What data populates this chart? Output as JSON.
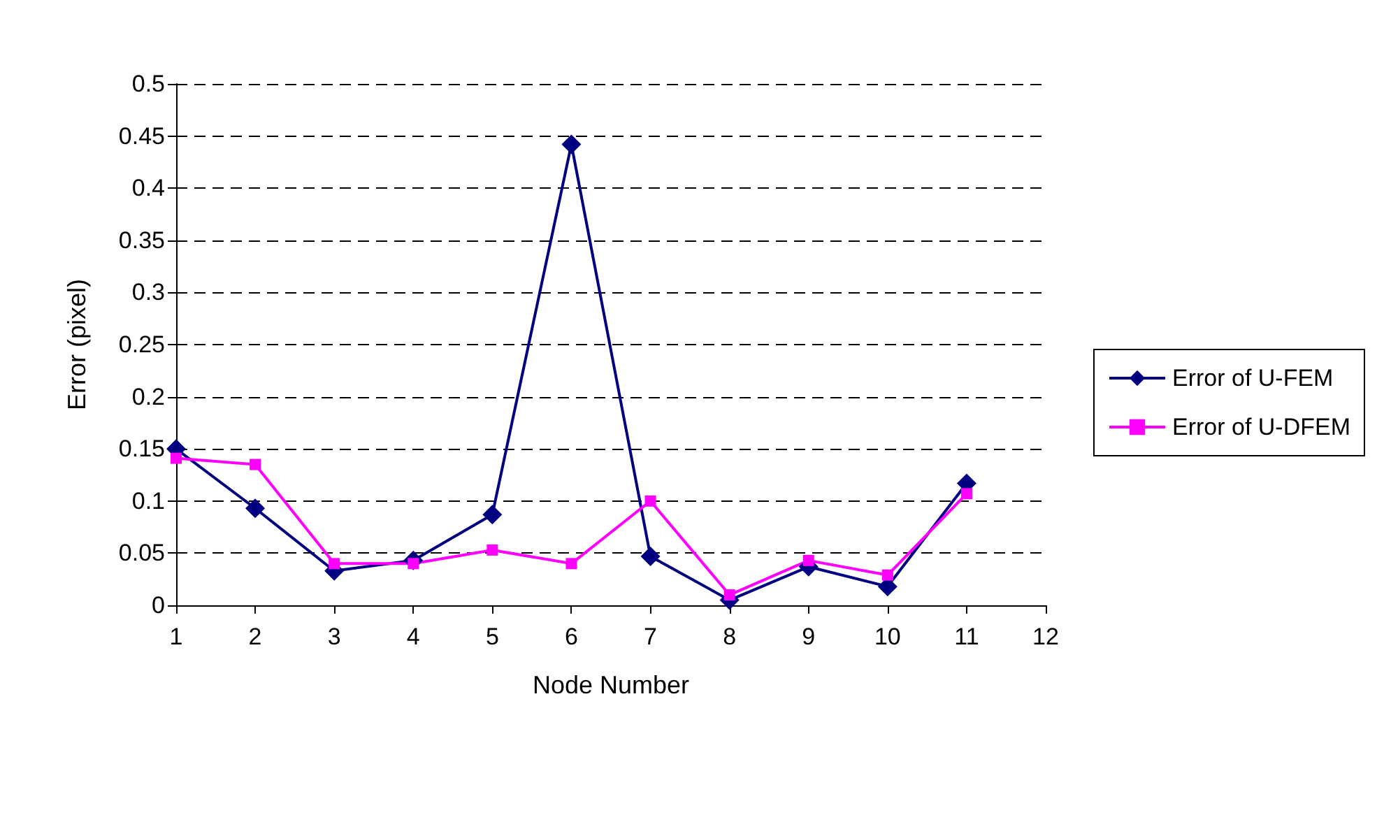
{
  "chart_data": {
    "type": "line",
    "xlabel": "Node Number",
    "ylabel": "Error (pixel)",
    "x": [
      1,
      2,
      3,
      4,
      5,
      6,
      7,
      8,
      9,
      10,
      11
    ],
    "series": [
      {
        "name": "Error of U-FEM",
        "color": "#000080",
        "marker": "diamond",
        "values": [
          0.15,
          0.093,
          0.033,
          0.043,
          0.087,
          0.442,
          0.047,
          0.005,
          0.037,
          0.018,
          0.117
        ]
      },
      {
        "name": "Error of U-DFEM",
        "color": "#ff00ff",
        "marker": "square",
        "values": [
          0.141,
          0.135,
          0.04,
          0.04,
          0.053,
          0.04,
          0.1,
          0.01,
          0.043,
          0.029,
          0.107
        ]
      }
    ],
    "xlim": [
      1,
      12
    ],
    "xticks": [
      1,
      2,
      3,
      4,
      5,
      6,
      7,
      8,
      9,
      10,
      11,
      12
    ],
    "ylim": [
      0,
      0.5
    ],
    "yticks": [
      0,
      0.05,
      0.1,
      0.15,
      0.2,
      0.25,
      0.3,
      0.35,
      0.4,
      0.45,
      0.5
    ],
    "grid": "y",
    "legend": "right",
    "line_style": "solid"
  }
}
